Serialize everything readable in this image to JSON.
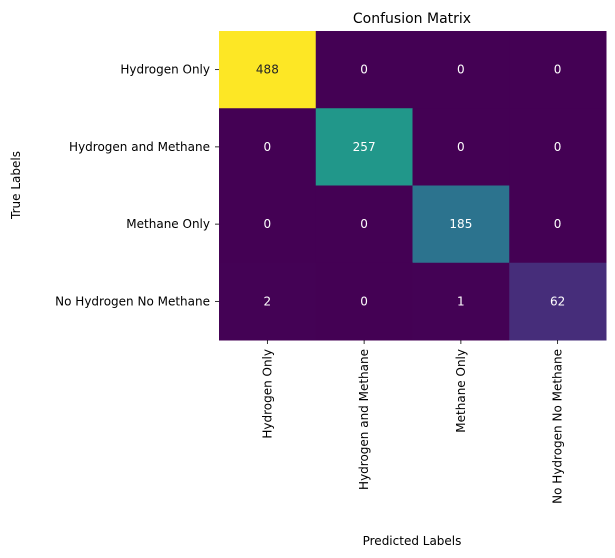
{
  "chart_data": {
    "type": "heatmap",
    "title": "Confusion Matrix",
    "xlabel": "Predicted Labels",
    "ylabel": "True Labels",
    "x_categories": [
      "Hydrogen Only",
      "Hydrogen and Methane",
      "Methane Only",
      "No Hydrogen No Methane"
    ],
    "y_categories": [
      "Hydrogen Only",
      "Hydrogen and Methane",
      "Methane Only",
      "No Hydrogen No Methane"
    ],
    "values": [
      [
        488,
        0,
        0,
        0
      ],
      [
        0,
        257,
        0,
        0
      ],
      [
        0,
        0,
        185,
        0
      ],
      [
        2,
        0,
        1,
        62
      ]
    ],
    "colormap": "viridis",
    "vmin": 0,
    "vmax": 488,
    "colorbar": false,
    "text_color_dark": "#262626",
    "text_color_light": "#ffffff"
  }
}
